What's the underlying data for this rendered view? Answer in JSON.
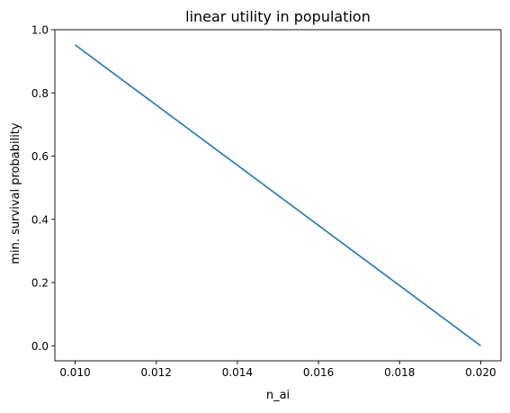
{
  "chart_data": {
    "type": "line",
    "title": "linear utility in population",
    "xlabel": "n_ai",
    "ylabel": "min. survival probability",
    "xlim": [
      0.0095,
      0.0205
    ],
    "ylim": [
      -0.0476,
      1.0
    ],
    "xticks": [
      0.01,
      0.012,
      0.014,
      0.016,
      0.018,
      0.02
    ],
    "xtick_labels": [
      "0.010",
      "0.012",
      "0.014",
      "0.016",
      "0.018",
      "0.020"
    ],
    "yticks": [
      0.0,
      0.2,
      0.4,
      0.6,
      0.8,
      1.0
    ],
    "ytick_labels": [
      "0.0",
      "0.2",
      "0.4",
      "0.6",
      "0.8",
      "1.0"
    ],
    "grid": false,
    "series": [
      {
        "color": "#1f77b4",
        "x": [
          0.01,
          0.02
        ],
        "y": [
          0.952,
          0.0
        ]
      }
    ]
  }
}
